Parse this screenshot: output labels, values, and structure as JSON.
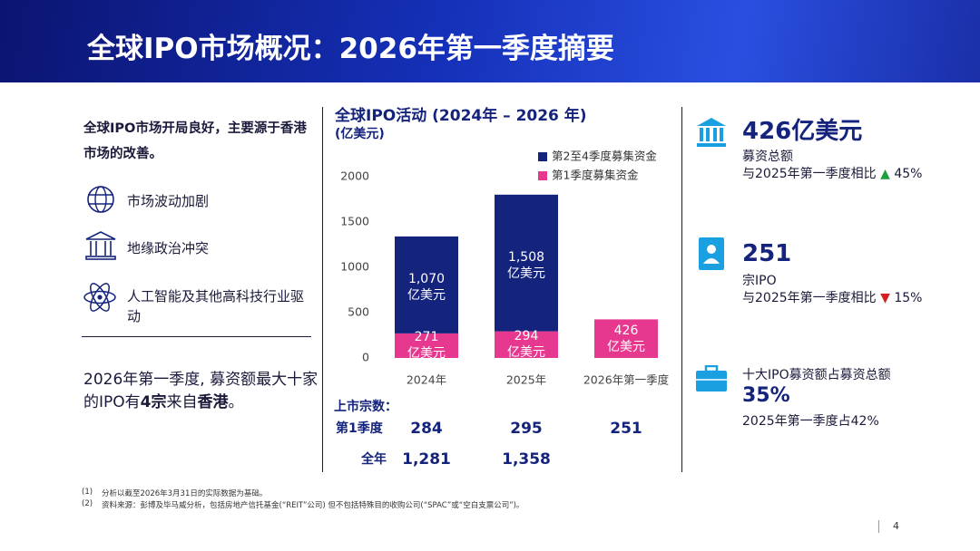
{
  "header": {
    "title": "全球IPO市场概况：2026年第一季度摘要"
  },
  "left": {
    "intro": "全球IPO市场开局良好，主要源于香港市场的改善。",
    "items": [
      "市场波动加剧",
      "地缘政治冲突",
      "人工智能及其他高科技行业驱动"
    ],
    "highlight": [
      "2026年第一季度, 募资额最大十家的IPO有",
      "4宗",
      "来自",
      "香港",
      "。"
    ]
  },
  "chart_data": {
    "type": "stacked_bar",
    "title": "全球IPO活动 (2024年 – 2026 年)",
    "subtitle": "(亿美元)",
    "categories": [
      "2024年",
      "2025年",
      "2026年第一季度"
    ],
    "series": [
      {
        "name": "第2至4季度募集资金",
        "color": "#14237c",
        "values": [
          1070,
          1508,
          null
        ],
        "value_labels": [
          "1,070\n亿美元",
          "1,508\n亿美元",
          null
        ]
      },
      {
        "name": "第1季度募集资金",
        "color": "#e6388e",
        "values": [
          271,
          294,
          426
        ],
        "value_labels": [
          "271\n亿美元",
          "294\n亿美元",
          "426\n亿美元"
        ]
      }
    ],
    "ylim": [
      0,
      2000
    ],
    "yticks": [
      0,
      500,
      1000,
      1500,
      2000
    ],
    "grid": false,
    "legend": "top-right"
  },
  "listings": {
    "title": "上市宗数：",
    "rows": [
      {
        "label": "第1季度",
        "values": [
          "284",
          "295",
          "251"
        ]
      },
      {
        "label": "全年",
        "values": [
          "1,281",
          "1,358"
        ]
      }
    ]
  },
  "right": {
    "stats": [
      {
        "headline": "426亿美元",
        "caption": "募资总额",
        "compare": "与2025年第一季度相比",
        "change": "45%"
      },
      {
        "headline": "251",
        "caption": "宗IPO",
        "compare": "与2025年第一季度相比",
        "change": "15%"
      },
      {
        "caption": "十大IPO募资额占募资总额",
        "headline": "35%",
        "compare": "2025年第一季度占42%"
      }
    ]
  },
  "footnotes": [
    {
      "marker": "(1)",
      "text": "分析以截至2026年3月31日的实际数据为基础。"
    },
    {
      "marker": "(2)",
      "text": "资料来源：彭博及毕马威分析，包括房地产信托基金(“REIT”公司) 但不包括特殊目的收购公司(“SPAC”或“空白支票公司”)。"
    }
  ],
  "footer": {
    "page": "4"
  }
}
